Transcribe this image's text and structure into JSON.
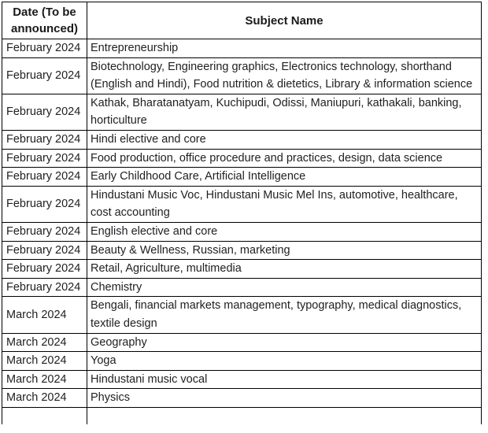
{
  "table": {
    "headers": {
      "date": "Date (To be announced)",
      "subject": "Subject Name"
    },
    "rows": [
      {
        "date": "February 2024",
        "subjects": "Entrepreneurship"
      },
      {
        "date": "February 2024",
        "subjects": "Biotechnology, Engineering graphics, Electronics technology, shorthand (English and Hindi), Food nutrition & dietetics, Library & information science"
      },
      {
        "date": "February 2024",
        "subjects": "Kathak, Bharatanatyam, Kuchipudi, Odissi, Maniupuri, kathakali, banking, horticulture"
      },
      {
        "date": "February 2024",
        "subjects": "Hindi elective and core"
      },
      {
        "date": "February 2024",
        "subjects": "Food production, office procedure and practices, design, data science"
      },
      {
        "date": "February 2024",
        "subjects": "Early Childhood Care, Artificial Intelligence"
      },
      {
        "date": "February 2024",
        "subjects": "Hindustani Music Voc, Hindustani Music Mel Ins, automotive, healthcare, cost accounting"
      },
      {
        "date": "February 2024",
        "subjects": "English elective and core"
      },
      {
        "date": "February 2024",
        "subjects": "Beauty & Wellness, Russian, marketing"
      },
      {
        "date": "February 2024",
        "subjects": "Retail, Agriculture, multimedia"
      },
      {
        "date": "February 2024",
        "subjects": "Chemistry"
      },
      {
        "date": "March 2024",
        "subjects": "Bengali, financial markets management, typography, medical diagnostics, textile design"
      },
      {
        "date": "March 2024",
        "subjects": "Geography"
      },
      {
        "date": "March 2024",
        "subjects": "Yoga"
      },
      {
        "date": "March 2024",
        "subjects": "Hindustani music vocal"
      },
      {
        "date": "March 2024",
        "subjects": "Physics"
      }
    ],
    "colors": {
      "border": "#000000",
      "text": "#202124",
      "background": "#ffffff"
    }
  }
}
